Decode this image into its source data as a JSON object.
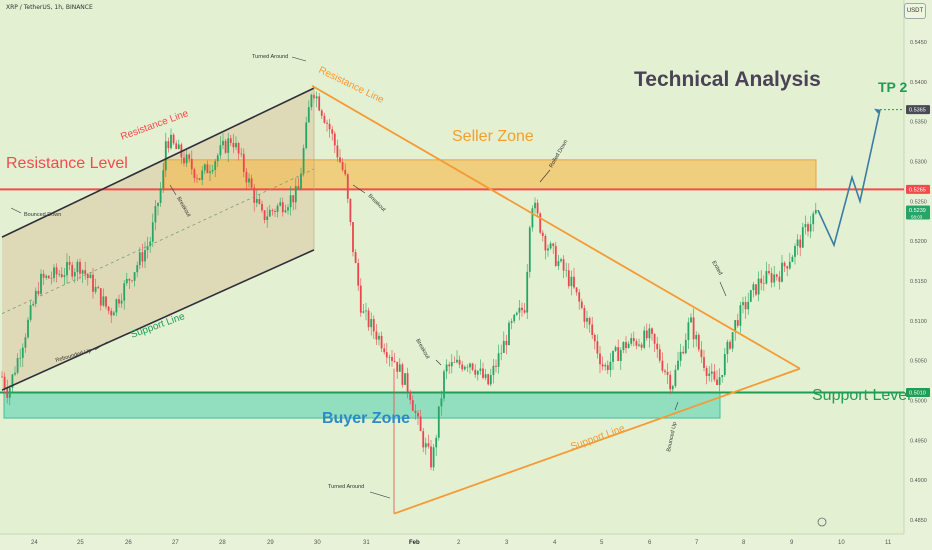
{
  "header": {
    "symbol": "XRP / TetherUS, 1h, BINANCE",
    "currency": "USDT"
  },
  "annotations": {
    "title": "Technical Analysis",
    "resistance_level": "Resistance Level",
    "support_level": "Support Level",
    "seller_zone": "Seller Zone",
    "buyer_zone": "Buyer Zone",
    "tp2": "TP 2",
    "channel_resistance": "Resistance Line",
    "channel_support": "Support Line",
    "triangle_resistance": "Resistance Line",
    "triangle_support": "Support Line",
    "turned_around_top": "Turned Around",
    "turned_around_bottom": "Turned Around",
    "bounced_down": "Bounced Down",
    "rebounded_up": "Rebounded Up",
    "breakout_1": "Breakout",
    "breakout_2": "Breakout",
    "breakout_3": "Breakout",
    "exited": "Exited",
    "rolled_down": "Rolled Down",
    "bounced_up": "Bounced Up"
  },
  "colors": {
    "background": "#e4f0d2",
    "bull": "#27a567",
    "bear": "#e8484d",
    "resistance": "#f14b4b",
    "support": "#1f9d55",
    "seller_zone": "#f4bc52",
    "buyer_zone": "#4fd1b0",
    "triangle": "#f59a33",
    "channel": "#2f2f3a",
    "projection": "#3a7ca5"
  },
  "chart_data": {
    "type": "candlestick",
    "x_ticks": [
      "24",
      "25",
      "26",
      "27",
      "28",
      "29",
      "30",
      "31",
      "Feb",
      "2",
      "3",
      "4",
      "5",
      "6",
      "7",
      "8",
      "9",
      "10",
      "11"
    ],
    "y_ticks": [
      "0.5450",
      "0.5400",
      "0.5350",
      "0.5300",
      "0.5250",
      "0.5200",
      "0.5150",
      "0.5100",
      "0.5050",
      "0.5000",
      "0.4950",
      "0.4900",
      "0.4850"
    ],
    "ylim": [
      0.4835,
      0.548
    ],
    "resistance_level": 0.5265,
    "support_level": 0.501,
    "current_price": 0.5239,
    "price_tags": {
      "tp2": "0.5365",
      "resistance": "0.5265",
      "current": "0.5239",
      "current_sub": "58:03",
      "support": "0.5010"
    },
    "seller_zone": [
      0.5265,
      0.5302
    ],
    "buyer_zone": [
      0.4978,
      0.501
    ],
    "tp2": 0.5365,
    "key_prices": {
      "start_low": 0.501,
      "channel_high": 0.5395,
      "breakdown_low": 0.4858,
      "rally_high": 0.5265,
      "triangle_low": 0.5,
      "last_close": 0.5239
    },
    "grid": false
  }
}
